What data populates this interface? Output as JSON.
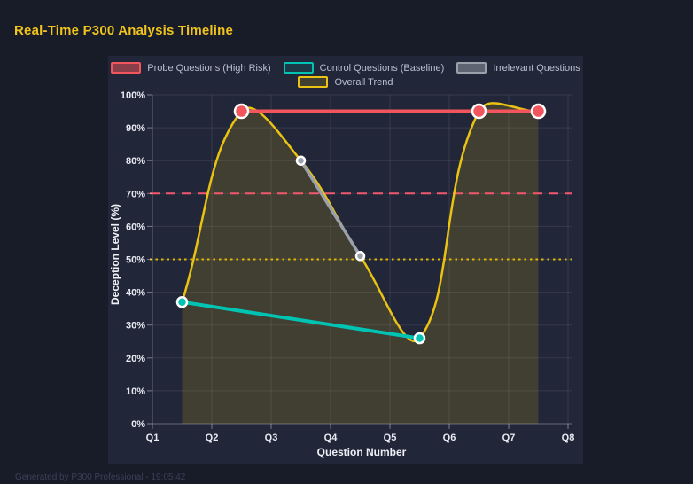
{
  "page": {
    "title": "Real-Time P300 Analysis Timeline",
    "footer": "Generated by P300 Professional - 19:05:42",
    "background": "#181b28",
    "panel_background": "#222639"
  },
  "chart_data": {
    "type": "line",
    "title": "Real-Time P300 Analysis Timeline",
    "xlabel": "Question Number",
    "ylabel": "Deception Level (%)",
    "x_ticks": [
      "Q1",
      "Q2",
      "Q3",
      "Q4",
      "Q5",
      "Q6",
      "Q7",
      "Q8"
    ],
    "x_range": [
      1,
      8
    ],
    "ylim": [
      0,
      100
    ],
    "y_tick_step": 10,
    "y_tick_suffix": "%",
    "grid": true,
    "legend_position": "top",
    "series": [
      {
        "name": "Probe Questions (High Risk)",
        "color": "#f2555c",
        "swatch_fill": "rgba(242,85,92,0.5)",
        "points": [
          [
            2.5,
            95
          ],
          [
            6.5,
            95
          ],
          [
            7.5,
            95
          ]
        ],
        "line_width": 4,
        "marker_radius": 7.5,
        "smooth": false
      },
      {
        "name": "Control Questions (Baseline)",
        "color": "#00c4b3",
        "swatch_fill": "rgba(0,196,179,0.12)",
        "points": [
          [
            1.5,
            37
          ],
          [
            5.5,
            26
          ]
        ],
        "line_width": 4,
        "marker_radius": 5.5,
        "smooth": false
      },
      {
        "name": "Irrelevant Questions",
        "color": "#9ba1ab",
        "swatch_fill": "rgba(155,161,171,0.5)",
        "points": [
          [
            3.5,
            80
          ],
          [
            4.5,
            51
          ]
        ],
        "line_width": 3.5,
        "marker_radius": 4.5,
        "smooth": false
      },
      {
        "name": "Overall Trend",
        "color": "#e9c213",
        "swatch_fill": "rgba(233,194,19,0.16)",
        "points": [
          [
            1.5,
            37
          ],
          [
            2.5,
            95
          ],
          [
            3.5,
            80
          ],
          [
            4.5,
            51
          ],
          [
            5.5,
            26
          ],
          [
            6.5,
            95
          ],
          [
            7.5,
            95
          ]
        ],
        "line_width": 2.5,
        "marker_radius": 0,
        "smooth": true,
        "area_fill": "rgba(233,194,19,0.16)"
      }
    ],
    "reference_lines": [
      {
        "value": 70,
        "color": "#f4586e",
        "dash": "11 7"
      },
      {
        "value": 50,
        "color": "#dfb600",
        "dash": "2.5 4"
      }
    ],
    "colors": {
      "grid": "rgba(255,255,255,0.09)",
      "axis_line": "rgba(255,255,255,0.25)",
      "tick_mark": "rgba(255,255,255,0.4)",
      "tick_text": "#e8eaf1",
      "axis_title": "#eef0f6",
      "legend_text": "#b9c0cd",
      "marker_ring": "#ffffff"
    }
  }
}
